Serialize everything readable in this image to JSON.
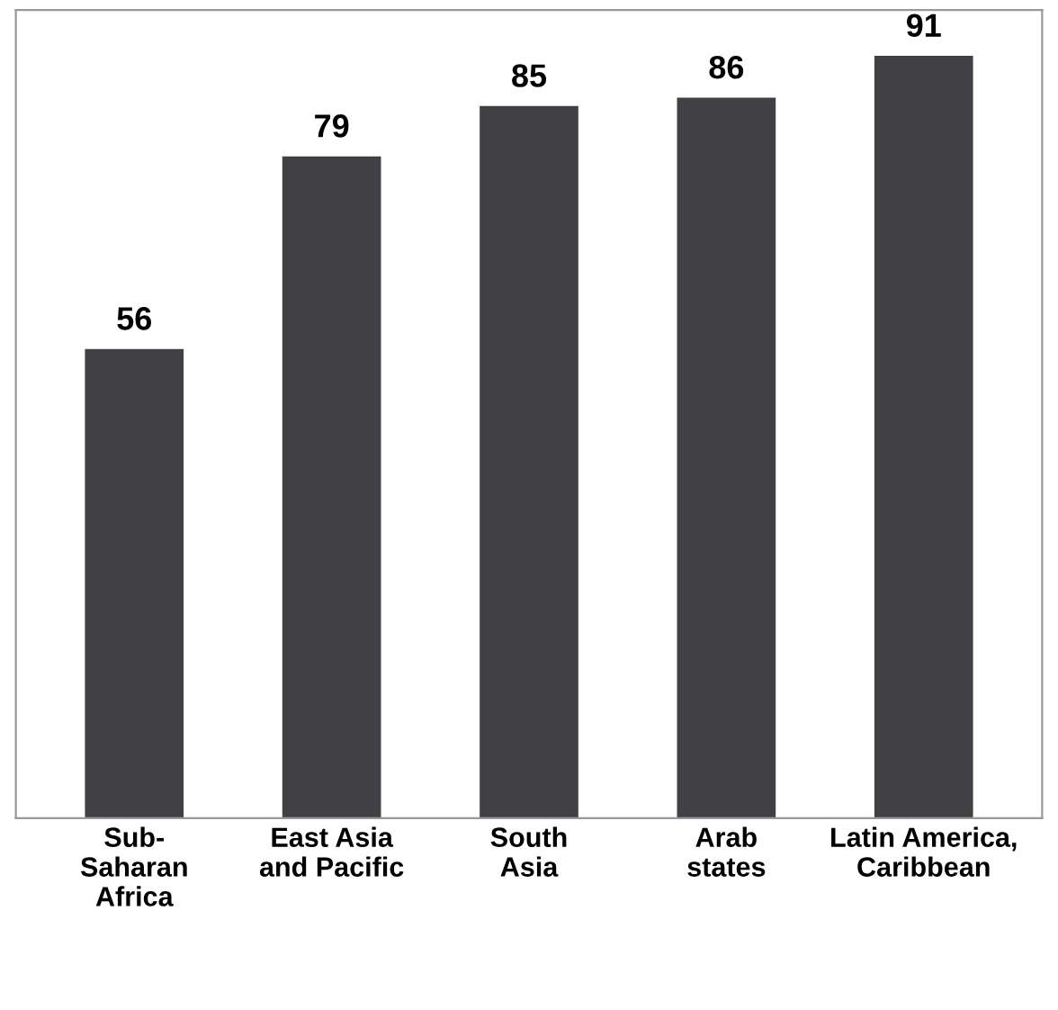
{
  "chart_data": {
    "type": "bar",
    "categories": [
      "Sub-\nSaharan\nAfrica",
      "East Asia\nand Pacific",
      "South\nAsia",
      "Arab\nstates",
      "Latin America,\nCaribbean"
    ],
    "values": [
      56,
      79,
      85,
      86,
      91
    ],
    "color": "#404045",
    "data_labels": true,
    "tick_labels": "x",
    "grid": false,
    "legend": false
  }
}
